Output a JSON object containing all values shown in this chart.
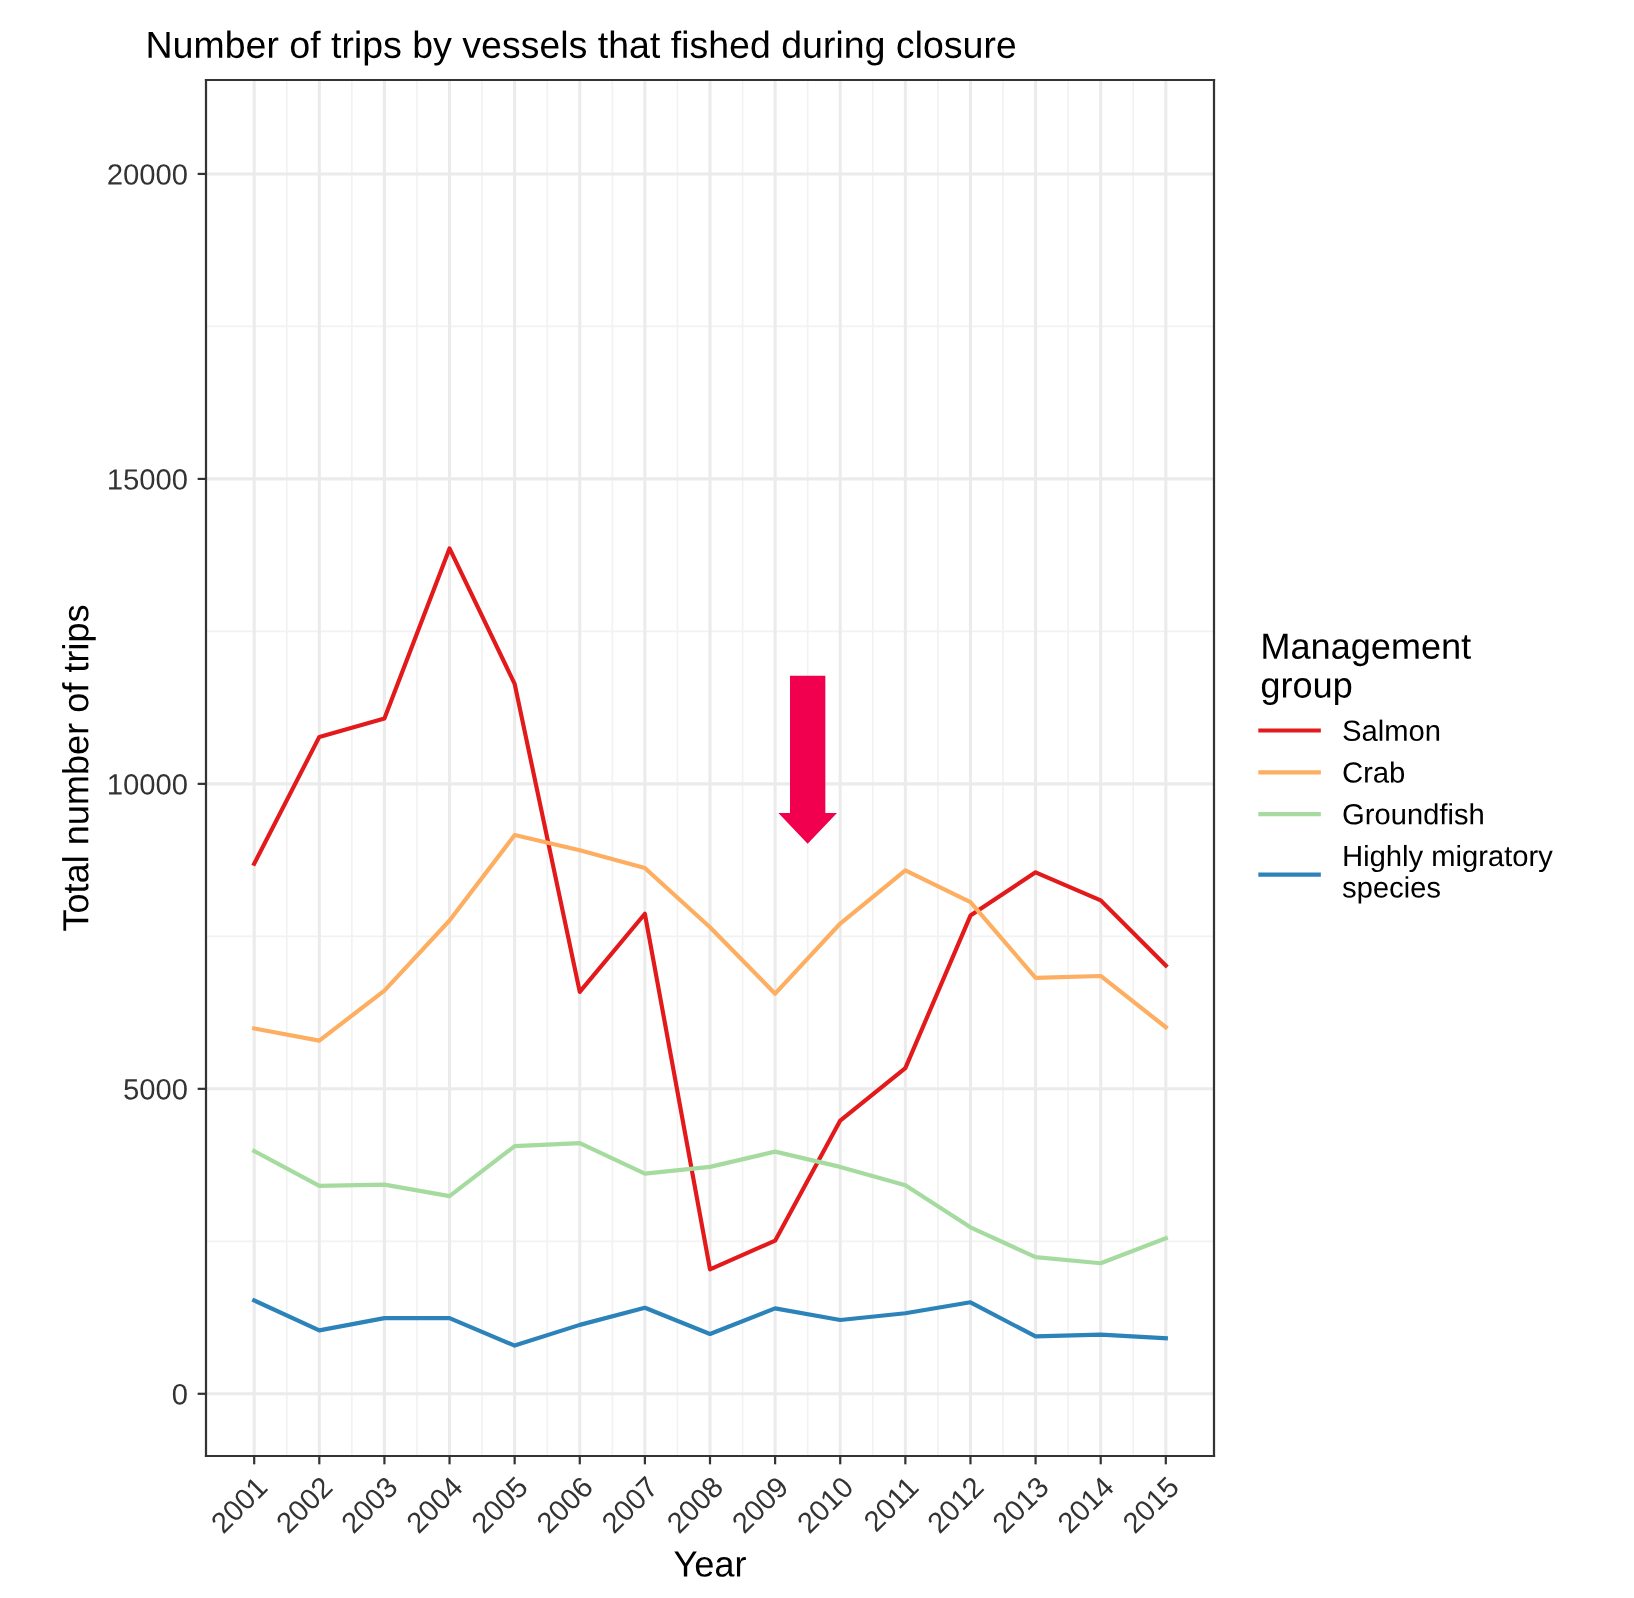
{
  "chart_data": {
    "type": "line",
    "title": "Number of trips by vessels that fished during closure",
    "xlabel": "Year",
    "ylabel": "Total number of trips",
    "legend_title": "Management\ngroup",
    "categories": [
      "2001",
      "2002",
      "2003",
      "2004",
      "2005",
      "2006",
      "2007",
      "2008",
      "2009",
      "2010",
      "2011",
      "2012",
      "2013",
      "2014",
      "2015"
    ],
    "series": [
      {
        "name": "Salmon",
        "color": "#e31a1c",
        "values": [
          8690,
          10770,
          11070,
          13860,
          11640,
          6590,
          7870,
          2040,
          2510,
          4480,
          5340,
          7840,
          8550,
          8090,
          7020
        ]
      },
      {
        "name": "Crab",
        "color": "#fdae61",
        "values": [
          5990,
          5790,
          6610,
          7760,
          9160,
          8910,
          8620,
          7650,
          6560,
          7710,
          8580,
          8060,
          6820,
          6850,
          6010
        ]
      },
      {
        "name": "Groundfish",
        "color": "#a6dba0",
        "values": [
          3980,
          3410,
          3430,
          3240,
          4060,
          4110,
          3610,
          3720,
          3970,
          3720,
          3420,
          2730,
          2240,
          2140,
          2550
        ]
      },
      {
        "name": "Highly migratory\nspecies",
        "color": "#2b83ba",
        "values": [
          1530,
          1040,
          1240,
          1240,
          790,
          1130,
          1410,
          980,
          1400,
          1210,
          1320,
          1500,
          940,
          970,
          910
        ]
      }
    ],
    "ylim": [
      -1020,
      21540
    ],
    "yticks": [
      0,
      5000,
      10000,
      15000,
      20000
    ],
    "grid": true,
    "legend": "right",
    "line_style": "solid",
    "marker": "none"
  }
}
